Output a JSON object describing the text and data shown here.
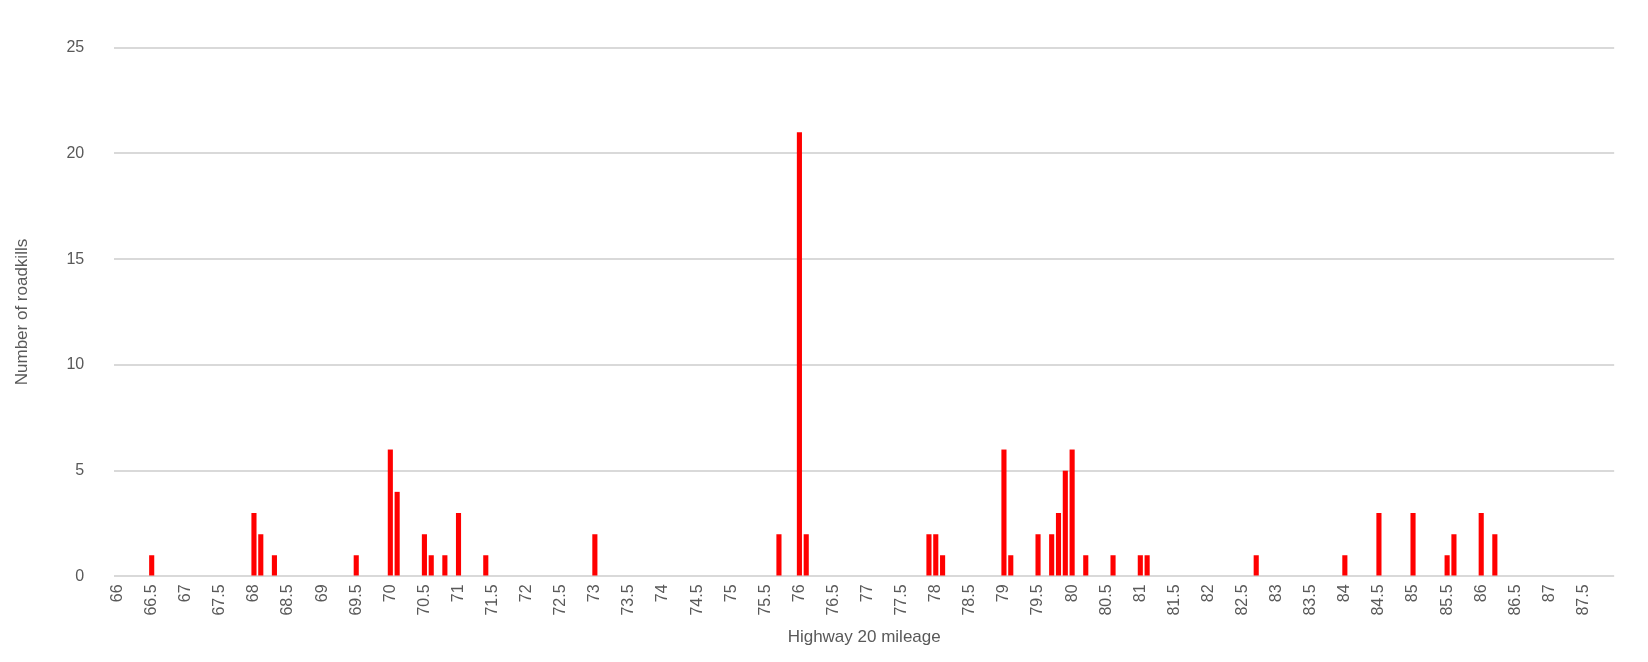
{
  "chart_data": {
    "type": "bar",
    "xlabel": "Highway 20 mileage",
    "ylabel": "Number of roadkills",
    "categories": [
      "66",
      null,
      null,
      null,
      null,
      "66.5",
      null,
      null,
      null,
      null,
      "67",
      null,
      null,
      null,
      null,
      "67.5",
      null,
      null,
      null,
      null,
      "68",
      null,
      null,
      null,
      null,
      "68.5",
      null,
      null,
      null,
      null,
      "69",
      null,
      null,
      null,
      null,
      "69.5",
      null,
      null,
      null,
      null,
      "70",
      null,
      null,
      null,
      null,
      "70.5",
      null,
      null,
      null,
      null,
      "71",
      null,
      null,
      null,
      null,
      "71.5",
      null,
      null,
      null,
      null,
      "72",
      null,
      null,
      null,
      null,
      "72.5",
      null,
      null,
      null,
      null,
      "73",
      null,
      null,
      null,
      null,
      "73.5",
      null,
      null,
      null,
      null,
      "74",
      null,
      null,
      null,
      null,
      "74.5",
      null,
      null,
      null,
      null,
      "75",
      null,
      null,
      null,
      null,
      "75.5",
      null,
      null,
      null,
      null,
      "76",
      null,
      null,
      null,
      null,
      "76.5",
      null,
      null,
      null,
      null,
      "77",
      null,
      null,
      null,
      null,
      "77.5",
      null,
      null,
      null,
      null,
      "78",
      null,
      null,
      null,
      null,
      "78.5",
      null,
      null,
      null,
      null,
      "79",
      null,
      null,
      null,
      null,
      "79.5",
      null,
      null,
      null,
      null,
      "80",
      null,
      null,
      null,
      null,
      "80.5",
      null,
      null,
      null,
      null,
      "81",
      null,
      null,
      null,
      null,
      "81.5",
      null,
      null,
      null,
      null,
      "82",
      null,
      null,
      null,
      null,
      "82.5",
      null,
      null,
      null,
      null,
      "83",
      null,
      null,
      null,
      null,
      "83.5",
      null,
      null,
      null,
      null,
      "84",
      null,
      null,
      null,
      null,
      "84.5",
      null,
      null,
      null,
      null,
      "85",
      null,
      null,
      null,
      null,
      "85.5",
      null,
      null,
      null,
      null,
      "86",
      null,
      null,
      null,
      null,
      "86.5",
      null,
      null,
      null,
      null,
      "87",
      null,
      null,
      null,
      null,
      "87.5",
      null,
      null,
      null,
      null
    ],
    "values": [
      0,
      0,
      0,
      0,
      0,
      1,
      0,
      0,
      0,
      0,
      0,
      0,
      0,
      0,
      0,
      0,
      0,
      0,
      0,
      0,
      3,
      2,
      0,
      1,
      0,
      0,
      0,
      0,
      0,
      0,
      0,
      0,
      0,
      0,
      0,
      1,
      0,
      0,
      0,
      0,
      6,
      4,
      0,
      0,
      0,
      2,
      1,
      0,
      1,
      0,
      3,
      0,
      0,
      0,
      1,
      0,
      0,
      0,
      0,
      0,
      0,
      0,
      0,
      0,
      0,
      0,
      0,
      0,
      0,
      0,
      2,
      0,
      0,
      0,
      0,
      0,
      0,
      0,
      0,
      0,
      0,
      0,
      0,
      0,
      0,
      0,
      0,
      0,
      0,
      0,
      0,
      0,
      0,
      0,
      0,
      0,
      0,
      2,
      0,
      0,
      21,
      2,
      0,
      0,
      0,
      0,
      0,
      0,
      0,
      0,
      0,
      0,
      0,
      0,
      0,
      0,
      0,
      0,
      0,
      2,
      2,
      1,
      0,
      0,
      0,
      0,
      0,
      0,
      0,
      0,
      6,
      1,
      0,
      0,
      0,
      2,
      0,
      2,
      3,
      5,
      6,
      0,
      1,
      0,
      0,
      0,
      1,
      0,
      0,
      0,
      1,
      1,
      0,
      0,
      0,
      0,
      0,
      0,
      0,
      0,
      0,
      0,
      0,
      0,
      0,
      0,
      0,
      1,
      0,
      0,
      0,
      0,
      0,
      0,
      0,
      0,
      0,
      0,
      0,
      0,
      1,
      0,
      0,
      0,
      0,
      3,
      0,
      0,
      0,
      0,
      3,
      0,
      0,
      0,
      0,
      1,
      2,
      0,
      0,
      0,
      3,
      0,
      2,
      0,
      0,
      0,
      0,
      0,
      0,
      0,
      0,
      0,
      0,
      0,
      0,
      0,
      0,
      0,
      0,
      0
    ],
    "color": "#ff0000",
    "ylim": [
      0,
      25
    ],
    "yticks": [
      0,
      5,
      10,
      15,
      20,
      25
    ],
    "grid": "y"
  }
}
